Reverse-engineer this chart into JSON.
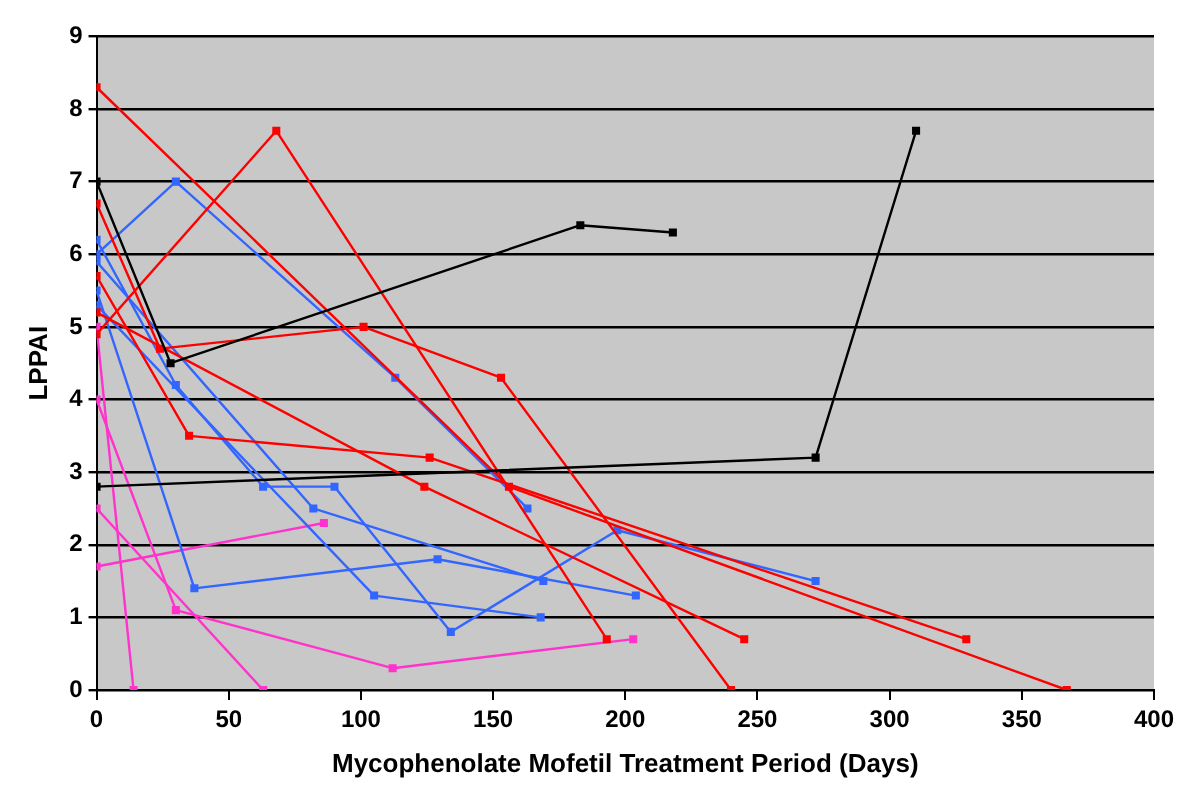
{
  "chart_data": {
    "type": "line",
    "xlabel": "Mycophenolate Mofetil Treatment Period (Days)",
    "ylabel": "LPPAI",
    "xlim": [
      0,
      400
    ],
    "xticks": [
      0,
      50,
      100,
      150,
      200,
      250,
      300,
      350,
      400
    ],
    "ylim": [
      0,
      9
    ],
    "yticks": [
      0,
      1,
      2,
      3,
      4,
      5,
      6,
      7,
      8,
      9
    ],
    "grid": "y",
    "legend": false,
    "marker": "square",
    "line_style": "solid",
    "series": [
      {
        "color": "#000000",
        "x": [
          0,
          28,
          183,
          218
        ],
        "values": [
          7,
          4.5,
          6.4,
          6.3
        ]
      },
      {
        "color": "#000000",
        "x": [
          0,
          272,
          310
        ],
        "values": [
          2.8,
          3.2,
          7.7
        ]
      },
      {
        "color": "#ff0000",
        "x": [
          0,
          156,
          367
        ],
        "values": [
          8.3,
          2.8,
          0
        ]
      },
      {
        "color": "#ff0000",
        "x": [
          0,
          68,
          193
        ],
        "values": [
          4.9,
          7.7,
          0.7
        ]
      },
      {
        "color": "#ff0000",
        "x": [
          0,
          24,
          101,
          153,
          240
        ],
        "values": [
          6.7,
          4.7,
          5.0,
          4.3,
          0
        ]
      },
      {
        "color": "#ff0000",
        "x": [
          0,
          35,
          126,
          329
        ],
        "values": [
          5.7,
          3.5,
          3.2,
          0.7
        ]
      },
      {
        "color": "#ff0000",
        "x": [
          0,
          124,
          245
        ],
        "values": [
          5.2,
          2.8,
          0.7
        ]
      },
      {
        "color": "#3366ff",
        "x": [
          0,
          30,
          113,
          163
        ],
        "values": [
          6.0,
          7.0,
          4.3,
          2.5
        ]
      },
      {
        "color": "#3366ff",
        "x": [
          0,
          30,
          63,
          90,
          134,
          197,
          272
        ],
        "values": [
          6.2,
          4.2,
          2.8,
          2.8,
          0.8,
          2.2,
          1.5
        ]
      },
      {
        "color": "#3366ff",
        "x": [
          0,
          37,
          129,
          204
        ],
        "values": [
          5.5,
          1.4,
          1.8,
          1.3
        ]
      },
      {
        "color": "#3366ff",
        "x": [
          0,
          82,
          169
        ],
        "values": [
          5.9,
          2.5,
          1.5
        ]
      },
      {
        "color": "#3366ff",
        "x": [
          0,
          105,
          168
        ],
        "values": [
          5.3,
          1.3,
          1.0
        ]
      },
      {
        "color": "#ff33cc",
        "x": [
          0,
          14
        ],
        "values": [
          5.0,
          0
        ]
      },
      {
        "color": "#ff33cc",
        "x": [
          0,
          30,
          112,
          203
        ],
        "values": [
          4.0,
          1.1,
          0.3,
          0.7
        ]
      },
      {
        "color": "#ff33cc",
        "x": [
          0,
          63
        ],
        "values": [
          2.5,
          0
        ]
      },
      {
        "color": "#ff33cc",
        "x": [
          0,
          86
        ],
        "values": [
          1.7,
          2.3
        ]
      }
    ]
  }
}
